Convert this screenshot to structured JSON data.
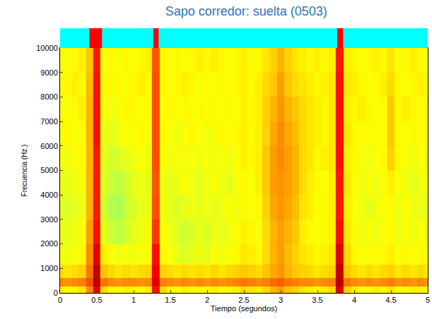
{
  "chart_data": {
    "type": "heatmap",
    "title": "Sapo corredor: suelta (0503)",
    "x_label": "Tiempo (segundos)",
    "y_label": "Frecuencia (Hz.)",
    "xlim": [
      0,
      5
    ],
    "xticks": [
      0,
      0.5,
      1,
      1.5,
      2,
      2.5,
      3,
      3.5,
      4,
      4.5,
      5
    ],
    "ylim": [
      0,
      10000
    ],
    "yticks": [
      0,
      1000,
      2000,
      3000,
      4000,
      5000,
      6000,
      7000,
      8000,
      9000,
      10000
    ],
    "zlim": [
      0,
      100
    ],
    "detections": [
      [
        0.4,
        0.57
      ],
      [
        1.27,
        1.34
      ],
      [
        3.77,
        3.85
      ]
    ],
    "x": [
      0,
      0.1,
      0.2,
      0.3,
      0.4,
      0.5,
      0.6,
      0.7,
      0.8,
      0.9,
      1,
      1.1,
      1.2,
      1.3,
      1.4,
      1.5,
      1.6,
      1.7,
      1.8,
      1.9,
      2,
      2.1,
      2.2,
      2.3,
      2.4,
      2.5,
      2.6,
      2.7,
      2.8,
      2.9,
      3,
      3.1,
      3.2,
      3.3,
      3.4,
      3.5,
      3.6,
      3.7,
      3.8,
      3.9,
      4,
      4.1,
      4.2,
      4.3,
      4.4,
      4.5,
      4.6,
      4.7,
      4.8,
      4.9,
      5
    ],
    "y": [
      100,
      400,
      800,
      1500,
      2500,
      3500,
      4500,
      5500,
      6500,
      7500,
      8500,
      9500
    ],
    "z": [
      [
        64,
        62,
        63,
        65,
        74,
        90,
        66,
        63,
        62,
        64,
        63,
        62,
        64,
        86,
        66,
        63,
        62,
        64,
        63,
        62,
        63,
        64,
        62,
        63,
        64,
        66,
        65,
        64,
        66,
        70,
        72,
        68,
        67,
        65,
        64,
        63,
        64,
        66,
        91,
        67,
        64,
        63,
        62,
        64,
        63,
        65,
        63,
        62,
        64,
        63,
        62
      ],
      [
        74,
        73,
        74,
        75,
        80,
        94,
        76,
        74,
        73,
        74,
        74,
        73,
        74,
        90,
        75,
        74,
        73,
        74,
        73,
        74,
        73,
        74,
        73,
        74,
        75,
        76,
        75,
        74,
        75,
        77,
        78,
        76,
        75,
        74,
        74,
        73,
        74,
        75,
        94,
        76,
        74,
        73,
        74,
        73,
        74,
        75,
        73,
        74,
        73,
        74,
        73
      ],
      [
        66,
        65,
        66,
        67,
        76,
        93,
        68,
        66,
        65,
        66,
        65,
        66,
        67,
        88,
        67,
        66,
        65,
        66,
        65,
        66,
        65,
        66,
        65,
        66,
        67,
        68,
        67,
        66,
        68,
        71,
        73,
        70,
        68,
        67,
        66,
        65,
        66,
        67,
        93,
        68,
        66,
        65,
        66,
        65,
        66,
        67,
        65,
        66,
        65,
        66,
        65
      ],
      [
        62,
        61,
        62,
        63,
        74,
        90,
        64,
        62,
        61,
        62,
        61,
        62,
        63,
        86,
        63,
        62,
        60,
        59,
        60,
        61,
        60,
        62,
        61,
        62,
        63,
        65,
        64,
        63,
        66,
        70,
        72,
        69,
        67,
        65,
        64,
        63,
        64,
        65,
        90,
        66,
        63,
        62,
        63,
        62,
        63,
        64,
        62,
        63,
        62,
        63,
        62
      ],
      [
        61,
        60,
        61,
        62,
        72,
        86,
        60,
        57,
        56,
        58,
        60,
        61,
        62,
        82,
        62,
        61,
        59,
        58,
        59,
        60,
        59,
        61,
        60,
        61,
        62,
        64,
        63,
        62,
        66,
        70,
        72,
        70,
        68,
        64,
        63,
        62,
        63,
        64,
        86,
        65,
        62,
        61,
        62,
        61,
        62,
        63,
        61,
        62,
        61,
        62,
        61
      ],
      [
        60,
        59,
        60,
        61,
        70,
        85,
        58,
        55,
        54,
        57,
        59,
        60,
        61,
        80,
        61,
        60,
        59,
        60,
        61,
        60,
        61,
        60,
        61,
        62,
        61,
        63,
        62,
        63,
        67,
        71,
        73,
        71,
        69,
        65,
        64,
        62,
        63,
        64,
        85,
        64,
        62,
        61,
        60,
        61,
        62,
        63,
        61,
        62,
        61,
        60,
        61
      ],
      [
        61,
        60,
        61,
        62,
        70,
        85,
        59,
        57,
        56,
        58,
        60,
        61,
        60,
        79,
        61,
        60,
        61,
        62,
        61,
        60,
        61,
        62,
        61,
        60,
        62,
        63,
        62,
        64,
        68,
        72,
        73,
        72,
        70,
        66,
        64,
        63,
        62,
        64,
        85,
        65,
        62,
        61,
        62,
        61,
        62,
        64,
        62,
        61,
        60,
        61,
        62
      ],
      [
        62,
        61,
        62,
        63,
        70,
        85,
        60,
        58,
        59,
        60,
        61,
        62,
        61,
        80,
        62,
        61,
        62,
        61,
        62,
        61,
        62,
        61,
        62,
        61,
        62,
        64,
        63,
        64,
        68,
        72,
        74,
        72,
        70,
        66,
        65,
        63,
        64,
        65,
        86,
        64,
        63,
        62,
        61,
        62,
        63,
        67,
        63,
        62,
        61,
        62,
        61
      ],
      [
        62,
        63,
        62,
        63,
        70,
        86,
        61,
        60,
        61,
        62,
        62,
        63,
        62,
        80,
        63,
        62,
        61,
        62,
        63,
        62,
        61,
        62,
        63,
        62,
        63,
        64,
        63,
        64,
        67,
        71,
        74,
        71,
        69,
        66,
        65,
        64,
        63,
        65,
        86,
        65,
        63,
        62,
        63,
        62,
        63,
        68,
        63,
        62,
        63,
        62,
        63
      ],
      [
        63,
        62,
        63,
        64,
        70,
        86,
        62,
        61,
        62,
        63,
        63,
        62,
        63,
        80,
        62,
        63,
        62,
        63,
        62,
        63,
        62,
        63,
        62,
        63,
        62,
        64,
        63,
        64,
        67,
        70,
        73,
        70,
        68,
        66,
        65,
        64,
        63,
        65,
        86,
        64,
        63,
        64,
        63,
        62,
        63,
        68,
        63,
        64,
        63,
        62,
        63
      ],
      [
        62,
        63,
        64,
        63,
        69,
        86,
        63,
        62,
        63,
        62,
        63,
        64,
        63,
        80,
        63,
        62,
        63,
        64,
        63,
        62,
        63,
        62,
        63,
        62,
        63,
        64,
        63,
        64,
        66,
        68,
        72,
        68,
        66,
        65,
        64,
        63,
        64,
        65,
        86,
        65,
        64,
        63,
        62,
        63,
        64,
        66,
        63,
        62,
        63,
        64,
        63
      ],
      [
        63,
        62,
        63,
        64,
        68,
        85,
        62,
        63,
        62,
        63,
        62,
        63,
        64,
        79,
        63,
        62,
        63,
        62,
        63,
        64,
        63,
        64,
        63,
        62,
        63,
        64,
        63,
        63,
        65,
        67,
        70,
        67,
        65,
        64,
        63,
        64,
        63,
        64,
        85,
        64,
        63,
        62,
        63,
        64,
        63,
        65,
        62,
        63,
        64,
        63,
        62
      ]
    ]
  }
}
